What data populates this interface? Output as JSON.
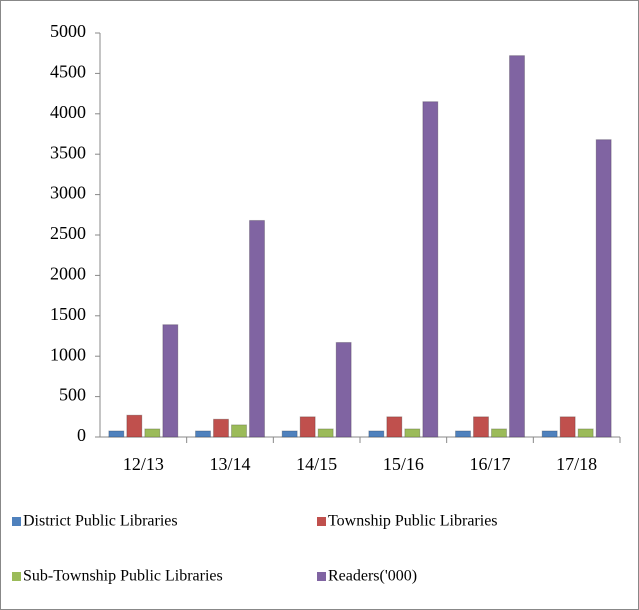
{
  "chart_data": {
    "type": "bar",
    "categories": [
      "12/13",
      "13/14",
      "14/15",
      "15/16",
      "16/17",
      "17/18"
    ],
    "series": [
      {
        "name": "District Public Libraries",
        "color": "#4f81bd",
        "values": [
          75,
          75,
          75,
          75,
          75,
          75
        ]
      },
      {
        "name": "Township Public Libraries",
        "color": "#c0504d",
        "values": [
          270,
          220,
          250,
          250,
          250,
          250
        ]
      },
      {
        "name": "Sub-Township Public Libraries",
        "color": "#9bbb59",
        "values": [
          100,
          150,
          100,
          100,
          100,
          100
        ]
      },
      {
        "name": "Readers('000)",
        "color": "#8064a2",
        "values": [
          1390,
          2680,
          1170,
          4150,
          4720,
          3680
        ]
      }
    ],
    "ylim": [
      0,
      5000
    ],
    "yticks": [
      0,
      500,
      1000,
      1500,
      2000,
      2500,
      3000,
      3500,
      4000,
      4500,
      5000
    ],
    "grid": false
  }
}
